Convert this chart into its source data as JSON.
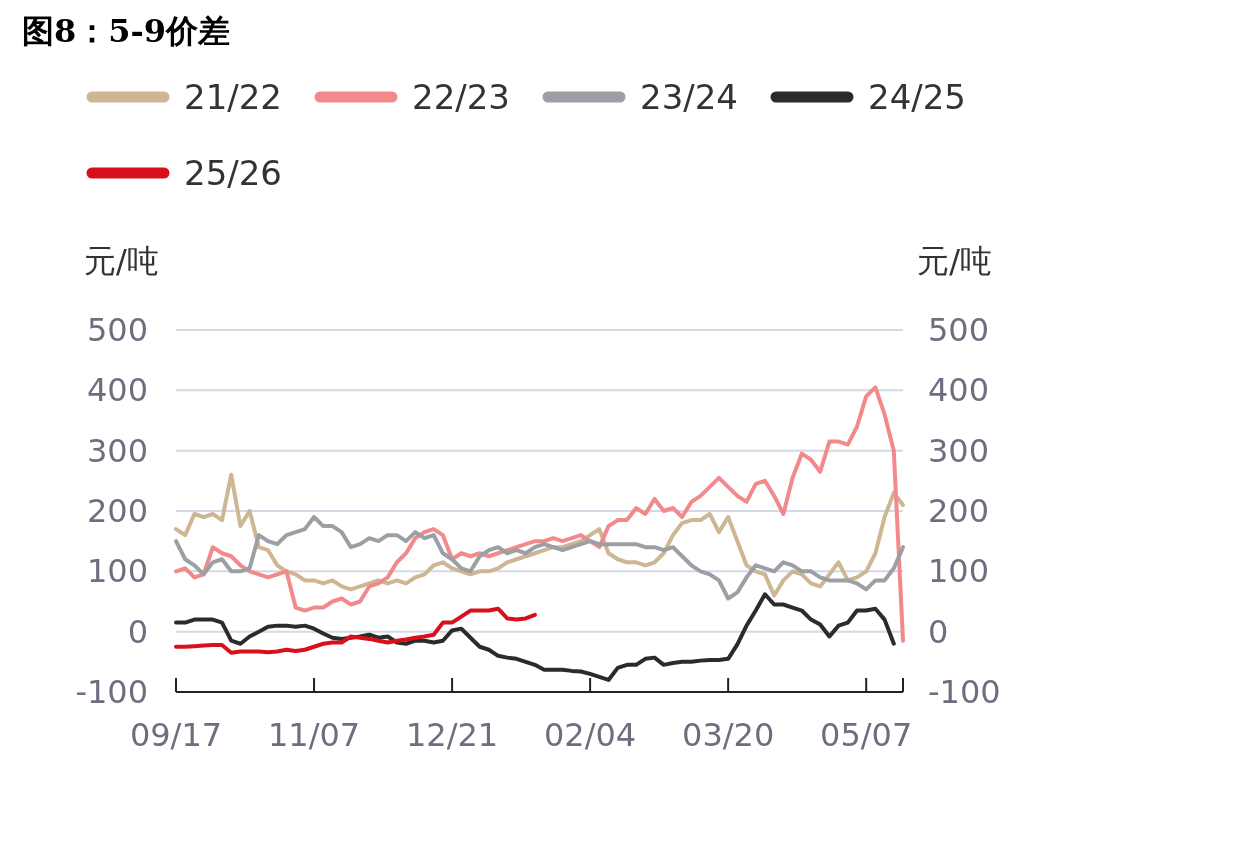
{
  "chart_data": {
    "type": "line",
    "title": "图8：5-9价差",
    "ylabel": "元/吨",
    "y2label": "元/吨",
    "categories": [
      "09/17",
      null,
      null,
      null,
      null,
      null,
      null,
      null,
      null,
      null,
      null,
      null,
      null,
      null,
      null,
      "11/07",
      null,
      null,
      null,
      null,
      null,
      null,
      null,
      null,
      null,
      null,
      null,
      null,
      null,
      null,
      "12/21",
      null,
      null,
      null,
      null,
      null,
      null,
      null,
      null,
      null,
      null,
      null,
      null,
      null,
      null,
      "02/04",
      null,
      null,
      null,
      null,
      null,
      null,
      null,
      null,
      null,
      null,
      null,
      null,
      null,
      null,
      "03/20",
      null,
      null,
      null,
      null,
      null,
      null,
      null,
      null,
      null,
      null,
      null,
      null,
      null,
      null,
      "05/07",
      null,
      null,
      null,
      null
    ],
    "series": [
      {
        "name": "21/22",
        "color": "#cdb793",
        "values": [
          170,
          160,
          195,
          190,
          195,
          185,
          260,
          175,
          200,
          140,
          135,
          110,
          100,
          95,
          85,
          85,
          80,
          85,
          75,
          70,
          75,
          80,
          85,
          80,
          85,
          80,
          90,
          95,
          110,
          115,
          105,
          100,
          95,
          100,
          100,
          105,
          115,
          120,
          125,
          130,
          135,
          140,
          140,
          145,
          150,
          160,
          170,
          130,
          120,
          115,
          115,
          110,
          115,
          130,
          160,
          180,
          185,
          185,
          195,
          165,
          190,
          150,
          110,
          100,
          95,
          60,
          85,
          100,
          95,
          80,
          75,
          95,
          115,
          85,
          90,
          100,
          130,
          190,
          230,
          210
        ]
      },
      {
        "name": "22/23",
        "color": "#f28a8c",
        "values": [
          100,
          105,
          90,
          95,
          140,
          130,
          125,
          110,
          100,
          95,
          90,
          95,
          100,
          40,
          35,
          40,
          40,
          50,
          55,
          45,
          50,
          75,
          80,
          90,
          115,
          130,
          155,
          165,
          170,
          160,
          120,
          130,
          125,
          130,
          125,
          130,
          135,
          140,
          145,
          150,
          150,
          155,
          150,
          155,
          160,
          150,
          140,
          175,
          185,
          185,
          205,
          195,
          220,
          200,
          205,
          190,
          215,
          225,
          240,
          255,
          240,
          225,
          215,
          245,
          250,
          225,
          195,
          255,
          295,
          285,
          265,
          315,
          315,
          310,
          340,
          390,
          405,
          360,
          300,
          -15
        ]
      },
      {
        "name": "23/24",
        "color": "#9c9fa3",
        "values": [
          150,
          120,
          110,
          95,
          115,
          120,
          100,
          100,
          105,
          160,
          150,
          145,
          160,
          165,
          170,
          190,
          175,
          175,
          165,
          140,
          145,
          155,
          150,
          160,
          160,
          150,
          165,
          155,
          160,
          130,
          120,
          105,
          100,
          125,
          135,
          140,
          130,
          135,
          130,
          140,
          145,
          140,
          135,
          140,
          145,
          150,
          145,
          145,
          145,
          145,
          145,
          140,
          140,
          135,
          140,
          125,
          110,
          100,
          95,
          85,
          55,
          65,
          90,
          110,
          105,
          100,
          115,
          110,
          100,
          100,
          90,
          85,
          85,
          85,
          80,
          70,
          85,
          85,
          105,
          140
        ]
      },
      {
        "name": "24/25",
        "color": "#2b2b2b",
        "values": [
          15,
          15,
          20,
          20,
          20,
          15,
          -15,
          -20,
          -8,
          0,
          8,
          10,
          10,
          8,
          10,
          5,
          -3,
          -10,
          -12,
          -10,
          -8,
          -5,
          -10,
          -8,
          -18,
          -20,
          -15,
          -15,
          -18,
          -15,
          2,
          5,
          -10,
          -25,
          -30,
          -40,
          -43,
          -45,
          -50,
          -55,
          -63,
          -63,
          -63,
          -65,
          -66,
          -70,
          -75,
          -80,
          -60,
          -55,
          -55,
          -45,
          -43,
          -55,
          -52,
          -50,
          -50,
          -48,
          -47,
          -47,
          -45,
          -21,
          10,
          35,
          62,
          45,
          45,
          40,
          35,
          20,
          12,
          -8,
          10,
          15,
          35,
          35,
          38,
          20,
          -20,
          null
        ]
      },
      {
        "name": "25/26",
        "color": "#d9101c",
        "values": [
          -25,
          -25,
          -24,
          -23,
          -22,
          -22,
          -35,
          -33,
          -33,
          -33,
          -34,
          -33,
          -30,
          -32,
          -30,
          -25,
          -20,
          -18,
          -18,
          -8,
          -10,
          -12,
          -15,
          -18,
          -15,
          -13,
          -10,
          -8,
          -5,
          15,
          15,
          25,
          35,
          35,
          35,
          38,
          22,
          20,
          22,
          28,
          null,
          null,
          null,
          null,
          null,
          null,
          null,
          null,
          null,
          null,
          null,
          null,
          null,
          null,
          null,
          null,
          null,
          null,
          null,
          null,
          null,
          null,
          null,
          null,
          null,
          null,
          null,
          null,
          null,
          null,
          null,
          null,
          null,
          null,
          null,
          null,
          null,
          null,
          null,
          null
        ]
      }
    ],
    "ylim": [
      -100,
      500
    ],
    "yticks": [
      -100,
      0,
      100,
      200,
      300,
      400,
      500
    ],
    "y2lim": [
      -100,
      500
    ],
    "y2ticks": [
      -100,
      0,
      100,
      200,
      300,
      400,
      500
    ],
    "grid": "y",
    "legend": "top",
    "line_style": "solid",
    "marker": "none"
  }
}
